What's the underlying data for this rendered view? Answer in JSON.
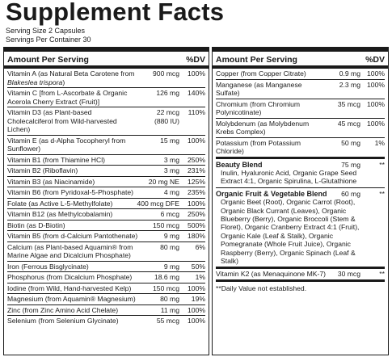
{
  "title": "Supplement Facts",
  "serving_size": "Serving Size 2 Capsules",
  "servings_per_container": "Servings Per Container 30",
  "header": {
    "amount": "Amount Per Serving",
    "dv": "%DV"
  },
  "left_rows": [
    {
      "name": "Vitamin A (as Natural Beta Carotene from ",
      "name_italic": "Blakeslea trispora",
      "name_after": ")",
      "qty": "900 mcg",
      "dv": "100%"
    },
    {
      "name": "Vitamin C [from L-Ascorbate & Organic Acerola Cherry Extract (Fruit)]",
      "qty": "126 mg",
      "dv": "140%"
    },
    {
      "name": "Vitamin D3 (as Plant-based Cholecalciferol from Wild-harvested Lichen)",
      "qty": "22 mcg",
      "qty2": "(880 IU)",
      "dv": "110%"
    },
    {
      "name": "Vitamin E (as d-Alpha Tocopheryl from Sunflower)",
      "qty": "15 mg",
      "dv": "100%"
    },
    {
      "name": "Vitamin B1 (from Thiamine HCl)",
      "qty": "3 mg",
      "dv": "250%"
    },
    {
      "name": "Vitamin B2 (Riboflavin)",
      "qty": "3 mg",
      "dv": "231%"
    },
    {
      "name": "Vitamin B3 (as Niacinamide)",
      "qty": "20 mg NE",
      "dv": "125%"
    },
    {
      "name": "Vitamin B6 (from Pyridoxal-5-Phosphate)",
      "qty": "4 mg",
      "dv": "235%"
    },
    {
      "name": "Folate (as Active L-5-Methylfolate)",
      "qty": "400 mcg DFE",
      "dv": "100%"
    },
    {
      "name": "Vitamin B12 (as Methylcobalamin)",
      "qty": "6 mcg",
      "dv": "250%"
    },
    {
      "name": "Biotin (as D-Biotin)",
      "qty": "150 mcg",
      "dv": "500%"
    },
    {
      "name": "Vitamin B5 (from d-Calcium Pantothenate)",
      "qty": "9 mg",
      "dv": "180%"
    },
    {
      "name": "Calcium (as Plant-based Aquamin® from Marine Algae and Dicalcium Phosphate)",
      "qty": "80 mg",
      "dv": "6%"
    },
    {
      "name": "Iron (Ferrous Bisglycinate)",
      "qty": "9 mg",
      "dv": "50%"
    },
    {
      "name": "Phosphorus (from Dicalcium Phosphate)",
      "qty": "18.6 mg",
      "dv": "1%"
    },
    {
      "name": "Iodine (from Wild, Hand-harvested Kelp)",
      "qty": "150 mcg",
      "dv": "100%"
    },
    {
      "name": "Magnesium (from Aquamin® Magnesium)",
      "qty": "80 mg",
      "dv": "19%"
    },
    {
      "name": "Zinc (from Zinc Amino Acid Chelate)",
      "qty": "11 mg",
      "dv": "100%"
    },
    {
      "name": "Selenium (from Selenium Glycinate)",
      "qty": "55 mcg",
      "dv": "100%"
    }
  ],
  "right_rows": [
    {
      "name": "Copper (from Copper Citrate)",
      "qty": "0.9 mg",
      "dv": "100%"
    },
    {
      "name": "Manganese (as Manganese Sulfate)",
      "qty": "2.3 mg",
      "dv": "100%"
    },
    {
      "name": "Chromium (from Chromium Polynicotinate)",
      "qty": "35 mcg",
      "dv": "100%"
    },
    {
      "name": "Molybdenum (as Molybdenum Krebs Complex)",
      "qty": "45 mcg",
      "dv": "100%"
    },
    {
      "name": "Potassium (from Potassium Chloride)",
      "qty": "50 mg",
      "dv": "1%"
    }
  ],
  "beauty_blend": {
    "title": "Beauty Blend",
    "qty": "75 mg",
    "dv": "**",
    "ingredients": "Inulin, Hyaluronic Acid, Organic Grape Seed Extract 4:1, Organic Spirulina, L-Glutathione"
  },
  "fruit_veg_blend": {
    "title": "Organic Fruit & Vegetable Blend",
    "qty": "60 mg",
    "dv": "**",
    "ingredients": "Organic Beet (Root), Organic Carrot (Root), Organic Black Currant (Leaves), Organic Blueberry (Berry), Organic Broccoli (Stem & Floret), Organic Cranberry Extract 4:1 (Fruit), Organic Kale (Leaf & Stalk), Organic Pomegranate (Whole Fruit Juice), Organic Raspberry (Berry), Organic Spinach (Leaf & Stalk)"
  },
  "k2_row": {
    "name": "Vitamin K2 (as Menaquinone MK-7)",
    "qty": "30 mcg",
    "dv": "**"
  },
  "footnote": "**Daily Value not established."
}
